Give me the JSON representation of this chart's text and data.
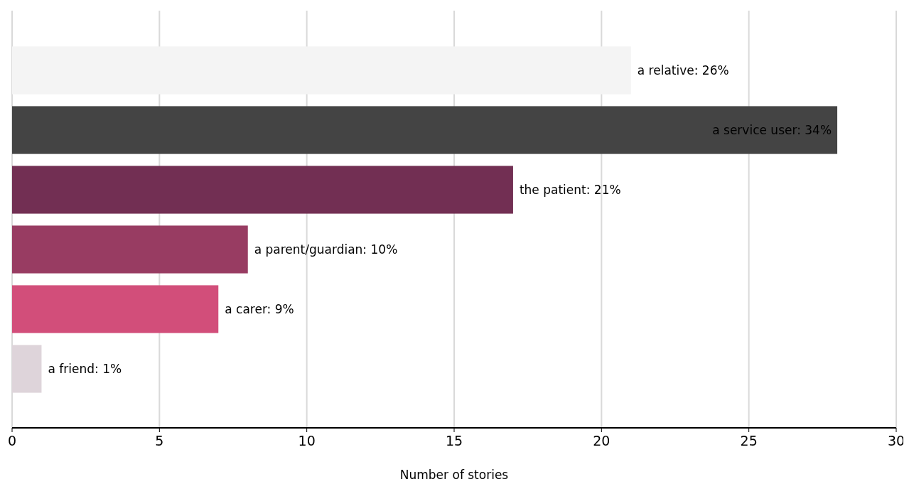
{
  "chart_data": {
    "type": "bar",
    "orientation": "horizontal",
    "xlabel": "Number of stories",
    "categories": [
      null,
      null,
      null,
      null,
      null,
      null
    ],
    "values": [
      21,
      28,
      17,
      8,
      7,
      1
    ],
    "colors": [
      "#f4f4f4",
      "#444444",
      "#722f53",
      "#983c62",
      "#d24e7a",
      "#ded4da"
    ],
    "annotations": [
      {
        "text": "a relative: 26%",
        "x": 21
      },
      {
        "text": "a service user: 34%",
        "x": 28
      },
      {
        "text": "the patient: 21%",
        "x": 17
      },
      {
        "text": "a parent/guardian: 10%",
        "x": 8
      },
      {
        "text": "a carer: 9%",
        "x": 7
      },
      {
        "text": "a friend: 1%",
        "x": 1
      }
    ],
    "xlim": [
      0,
      30
    ],
    "xticks": [
      0,
      5,
      10,
      15,
      20,
      25,
      30
    ],
    "grid": "x"
  }
}
